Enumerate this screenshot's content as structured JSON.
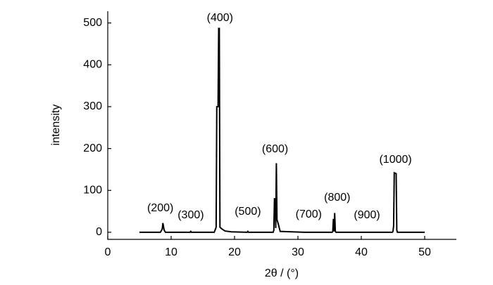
{
  "chart_data": {
    "type": "line",
    "x_label": "2θ / (°)",
    "y_label": "intensity",
    "xlim": [
      0,
      55
    ],
    "ylim": [
      -17,
      528
    ],
    "xticks": [
      0,
      10,
      20,
      30,
      40,
      50
    ],
    "yticks": [
      0,
      100,
      200,
      300,
      400,
      500
    ],
    "series": [
      {
        "color": "#000000",
        "x": [
          5,
          8.3,
          8.5,
          8.6,
          8.7,
          8.9,
          9.1,
          13,
          13.1,
          13.2,
          16.8,
          17.0,
          17.1,
          17.2,
          17.3,
          17.4,
          17.5,
          17.6,
          17.7,
          18.0,
          18.5,
          19.5,
          22,
          22.1,
          22.2,
          26.1,
          26.2,
          26.3,
          26.4,
          26.5,
          26.6,
          26.7,
          26.9,
          27.2,
          31,
          35.4,
          35.5,
          35.6,
          35.7,
          35.8,
          35.9,
          36.0,
          44.9,
          45.0,
          45.1,
          45.2,
          45.5,
          45.6,
          45.7,
          50
        ],
        "values": [
          0,
          0,
          5,
          8,
          22,
          5,
          0,
          0,
          2,
          0,
          0,
          8,
          12,
          300,
          300,
          300,
          487,
          487,
          12,
          8,
          3,
          1,
          0,
          2,
          0,
          0,
          5,
          80,
          80,
          10,
          165,
          30,
          20,
          2,
          0,
          0,
          2,
          32,
          2,
          46,
          3,
          0,
          0,
          2,
          15,
          142,
          140,
          5,
          0,
          0
        ]
      }
    ],
    "annotations": [
      {
        "text": "(200)",
        "x": 8.3,
        "y": 57
      },
      {
        "text": "(300)",
        "x": 13.1,
        "y": 40
      },
      {
        "text": "(400)",
        "x": 17.7,
        "y": 512
      },
      {
        "text": "(500)",
        "x": 22.1,
        "y": 49
      },
      {
        "text": "(600)",
        "x": 26.4,
        "y": 198
      },
      {
        "text": "(700)",
        "x": 31.7,
        "y": 42
      },
      {
        "text": "(800)",
        "x": 36.2,
        "y": 82
      },
      {
        "text": "(900)",
        "x": 40.9,
        "y": 40
      },
      {
        "text": "(1000)",
        "x": 45.4,
        "y": 173
      }
    ]
  }
}
